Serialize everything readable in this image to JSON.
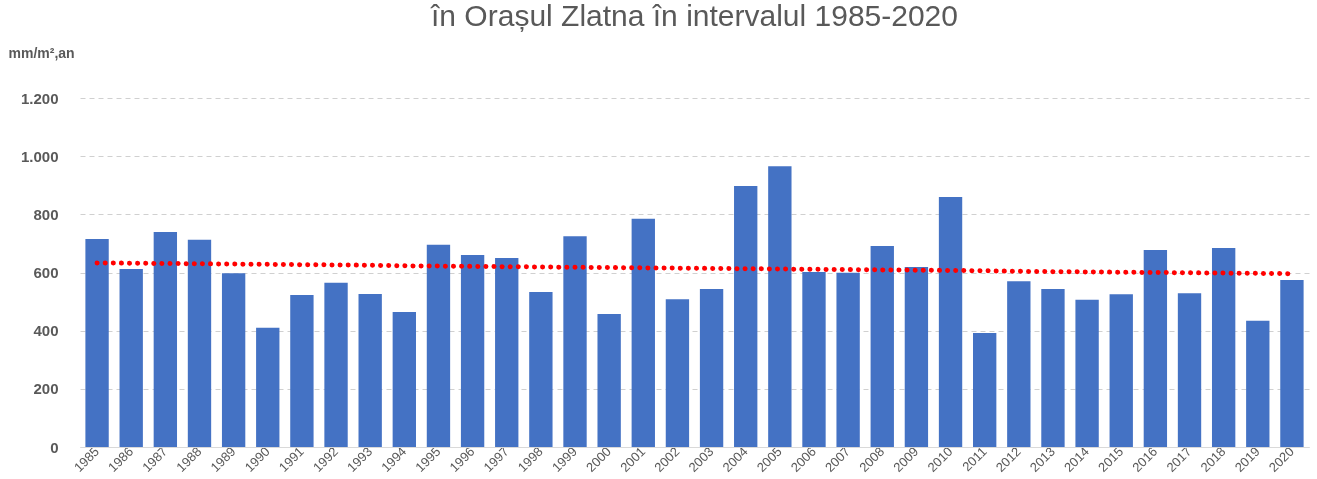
{
  "chart_data": {
    "type": "bar",
    "title": "în Orașul Zlatna în intervalul 1985-2020",
    "ylabel": "mm/m²,an",
    "categories": [
      "1985",
      "1986",
      "1987",
      "1988",
      "1989",
      "1990",
      "1991",
      "1992",
      "1993",
      "1994",
      "1995",
      "1996",
      "1997",
      "1998",
      "1999",
      "2000",
      "2001",
      "2002",
      "2003",
      "2004",
      "2005",
      "2006",
      "2007",
      "2008",
      "2009",
      "2010",
      "2011",
      "2012",
      "2013",
      "2014",
      "2015",
      "2016",
      "2017",
      "2018",
      "2019",
      "2020"
    ],
    "series": [
      {
        "color": "#4472c4",
        "values": [
          715,
          612,
          739,
          713,
          597,
          410,
          523,
          565,
          526,
          464,
          695,
          660,
          650,
          533,
          725,
          457,
          785,
          508,
          543,
          897,
          965,
          602,
          599,
          691,
          619,
          860,
          392,
          570,
          543,
          506,
          525,
          677,
          529,
          684,
          434,
          574
        ]
      },
      {
        "type": "line",
        "color": "#ff0000",
        "line_style": "dotted",
        "values": [
          633,
          632,
          631,
          630,
          629,
          628,
          627,
          626,
          625,
          623,
          622,
          621,
          620,
          619,
          618,
          617,
          616,
          615,
          614,
          613,
          612,
          611,
          610,
          609,
          608,
          607,
          606,
          604,
          603,
          602,
          601,
          600,
          599,
          598,
          597,
          596
        ]
      }
    ],
    "ylim": [
      0,
      1200
    ],
    "yticks": [
      0,
      200,
      400,
      600,
      800,
      {
        "value": 1000,
        "label": "1.000"
      },
      {
        "value": 1200,
        "label": "1.200"
      }
    ],
    "grid": "y"
  }
}
